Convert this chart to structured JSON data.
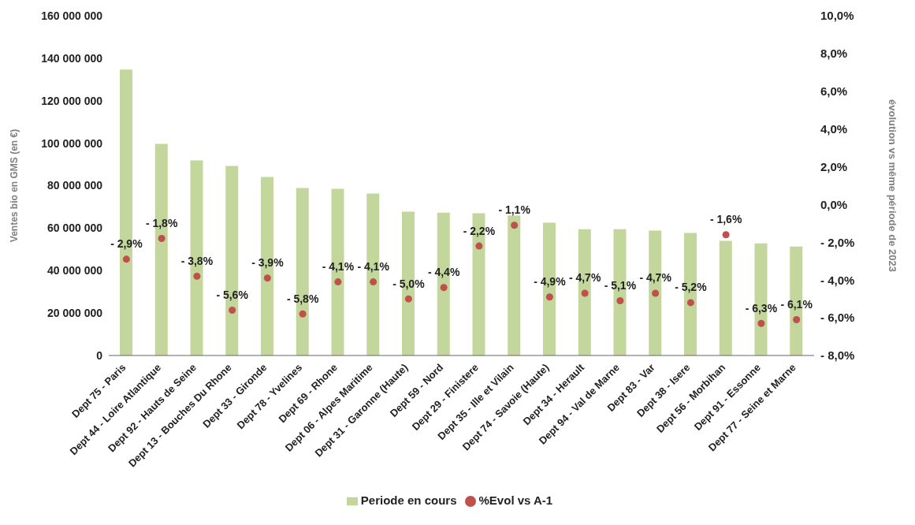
{
  "chart_data": {
    "type": "bar",
    "ylabel": "Ventes bio en GMS (en €)",
    "y2label": "évolution vs même période de 2023",
    "categories": [
      "Dept 75 - Paris",
      "Dept 44 - Loire Atlantique",
      "Dept 92 - Hauts de Seine",
      "Dept 13 - Bouches Du Rhone",
      "Dept 33 - Gironde",
      "Dept 78 - Yvelines",
      "Dept 69 - Rhone",
      "Dept 06 - Alpes Maritime",
      "Dept 31 - Garonne (Haute)",
      "Dept 59 - Nord",
      "Dept 29 - Finistere",
      "Dept 35 - Ille et Vilain",
      "Dept 74 - Savoie (Haute)",
      "Dept 34 - Herault",
      "Dept 94 - Val de Marne",
      "Dept 83 - Var",
      "Dept 38 - Isere",
      "Dept 56 - Morbihan",
      "Dept 91 - Essonne",
      "Dept 77 - Seine et Marne"
    ],
    "series": [
      {
        "name": "Periode en cours",
        "color": "#c3d69b",
        "values": [
          134700000,
          99700000,
          91900000,
          89300000,
          84100000,
          78900000,
          78500000,
          76300000,
          67700000,
          67300000,
          67000000,
          65900000,
          62500000,
          59500000,
          59500000,
          58800000,
          57700000,
          54000000,
          52800000,
          51300000
        ]
      },
      {
        "name": "%Evol vs A-1",
        "type": "scatter",
        "axis": "y2",
        "color": "#c0504d",
        "marker": "circle",
        "values": [
          -2.9,
          -1.8,
          -3.8,
          -5.6,
          -3.9,
          -5.8,
          -4.1,
          -4.1,
          -5.0,
          -4.4,
          -2.2,
          -1.1,
          -4.9,
          -4.7,
          -5.1,
          -4.7,
          -5.2,
          -1.6,
          -6.3,
          -6.1
        ],
        "value_labels": [
          "- 2,9%",
          "- 1,8%",
          "- 3,8%",
          "- 5,6%",
          "- 3,9%",
          "- 5,8%",
          "- 4,1%",
          "- 4,1%",
          "- 5,0%",
          "- 4,4%",
          "- 2,2%",
          "- 1,1%",
          "- 4,9%",
          "- 4,7%",
          "- 5,1%",
          "- 4,7%",
          "- 5,2%",
          "- 1,6%",
          "- 6,3%",
          "- 6,1%"
        ]
      }
    ],
    "ylim": [
      0,
      160000000
    ],
    "yticks": [
      {
        "value": 0,
        "label": "0"
      },
      {
        "value": 20000000,
        "label": "20 000 000"
      },
      {
        "value": 40000000,
        "label": "40 000 000"
      },
      {
        "value": 60000000,
        "label": "60 000 000"
      },
      {
        "value": 80000000,
        "label": "80 000 000"
      },
      {
        "value": 100000000,
        "label": "100 000 000"
      },
      {
        "value": 120000000,
        "label": "120 000 000"
      },
      {
        "value": 140000000,
        "label": "140 000 000"
      },
      {
        "value": 160000000,
        "label": "160 000 000"
      }
    ],
    "y2lim": [
      -8,
      10
    ],
    "y2ticks": [
      {
        "value": -8,
        "label": "- 8,0%"
      },
      {
        "value": -6,
        "label": "- 6,0%"
      },
      {
        "value": -4,
        "label": "- 4,0%"
      },
      {
        "value": -2,
        "label": "- 2,0%"
      },
      {
        "value": 0,
        "label": "0,0%"
      },
      {
        "value": 2,
        "label": "2,0%"
      },
      {
        "value": 4,
        "label": "4,0%"
      },
      {
        "value": 6,
        "label": "6,0%"
      },
      {
        "value": 8,
        "label": "8,0%"
      },
      {
        "value": 10,
        "label": "10,0%"
      }
    ],
    "legend": "bottom",
    "grid": false
  }
}
